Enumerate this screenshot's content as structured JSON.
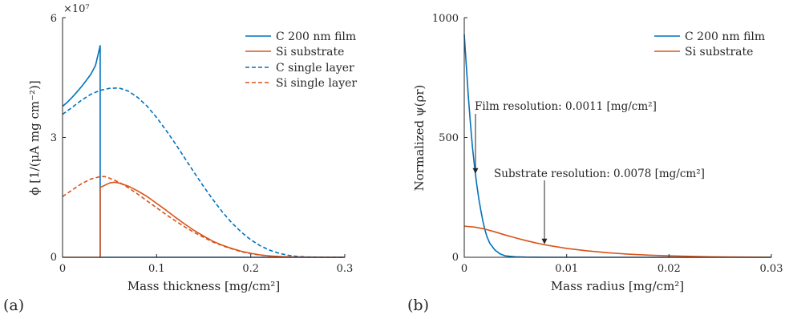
{
  "panels": [
    {
      "label": "(a)",
      "xlabel": "Mass thickness [mg/cm²]",
      "ylabel": "ϕ [1/(μA mg cm⁻²)]",
      "y_multiplier": "×10⁷"
    },
    {
      "label": "(b)",
      "xlabel": "Mass radius [mg/cm²]",
      "ylabel": "Normalized ψ(ρr)"
    }
  ],
  "colors": {
    "blue": "#0072BD",
    "orange": "#D95319",
    "axis": "#262626"
  },
  "chart_data": [
    {
      "type": "line",
      "xlim": [
        0,
        0.3
      ],
      "ylim": [
        0,
        6
      ],
      "y_scale_exponent": 7,
      "x_ticks": [
        "0",
        "0.1",
        "0.2",
        "0.3"
      ],
      "x_tick_values": [
        0,
        0.1,
        0.2,
        0.3
      ],
      "y_ticks": [
        "0",
        "3",
        "6"
      ],
      "y_tick_values": [
        0,
        3,
        6
      ],
      "grid": false,
      "legend_position": "top-right",
      "series": [
        {
          "name": "C 200 nm film",
          "color": "blue",
          "dash": "solid",
          "points": [
            [
              0,
              3.78
            ],
            [
              0.005,
              3.88
            ],
            [
              0.01,
              4.0
            ],
            [
              0.015,
              4.13
            ],
            [
              0.02,
              4.27
            ],
            [
              0.025,
              4.42
            ],
            [
              0.03,
              4.58
            ],
            [
              0.035,
              4.8
            ],
            [
              0.04,
              5.3
            ],
            [
              0.04,
              0.0
            ],
            [
              0.3,
              0.0
            ]
          ]
        },
        {
          "name": "Si substrate",
          "color": "orange",
          "dash": "solid",
          "points": [
            [
              0,
              0.0
            ],
            [
              0.04,
              0.0
            ],
            [
              0.04,
              1.75
            ],
            [
              0.05,
              1.86
            ],
            [
              0.055,
              1.88
            ],
            [
              0.06,
              1.86
            ],
            [
              0.07,
              1.78
            ],
            [
              0.08,
              1.66
            ],
            [
              0.09,
              1.52
            ],
            [
              0.1,
              1.35
            ],
            [
              0.11,
              1.18
            ],
            [
              0.12,
              1.0
            ],
            [
              0.13,
              0.83
            ],
            [
              0.14,
              0.67
            ],
            [
              0.15,
              0.53
            ],
            [
              0.16,
              0.4
            ],
            [
              0.17,
              0.3
            ],
            [
              0.18,
              0.22
            ],
            [
              0.19,
              0.15
            ],
            [
              0.2,
              0.1
            ],
            [
              0.21,
              0.06
            ],
            [
              0.22,
              0.035
            ],
            [
              0.23,
              0.02
            ],
            [
              0.24,
              0.01
            ],
            [
              0.26,
              0.003
            ],
            [
              0.28,
              0.0
            ],
            [
              0.3,
              0.0
            ]
          ]
        },
        {
          "name": "C single layer",
          "color": "blue",
          "dash": "dashed",
          "points": [
            [
              0,
              3.58
            ],
            [
              0.01,
              3.75
            ],
            [
              0.02,
              3.93
            ],
            [
              0.03,
              4.08
            ],
            [
              0.04,
              4.18
            ],
            [
              0.05,
              4.23
            ],
            [
              0.06,
              4.24
            ],
            [
              0.07,
              4.16
            ],
            [
              0.08,
              4.0
            ],
            [
              0.09,
              3.78
            ],
            [
              0.1,
              3.5
            ],
            [
              0.11,
              3.18
            ],
            [
              0.12,
              2.84
            ],
            [
              0.13,
              2.48
            ],
            [
              0.14,
              2.12
            ],
            [
              0.15,
              1.77
            ],
            [
              0.16,
              1.44
            ],
            [
              0.17,
              1.13
            ],
            [
              0.18,
              0.86
            ],
            [
              0.19,
              0.63
            ],
            [
              0.2,
              0.44
            ],
            [
              0.21,
              0.29
            ],
            [
              0.22,
              0.18
            ],
            [
              0.23,
              0.1
            ],
            [
              0.24,
              0.05
            ],
            [
              0.25,
              0.02
            ],
            [
              0.26,
              0.008
            ],
            [
              0.28,
              0.0
            ],
            [
              0.3,
              0.0
            ]
          ]
        },
        {
          "name": "Si single layer",
          "color": "orange",
          "dash": "dashed",
          "points": [
            [
              0,
              1.52
            ],
            [
              0.01,
              1.68
            ],
            [
              0.02,
              1.84
            ],
            [
              0.03,
              1.96
            ],
            [
              0.04,
              2.02
            ],
            [
              0.045,
              2.02
            ],
            [
              0.05,
              1.98
            ],
            [
              0.06,
              1.88
            ],
            [
              0.07,
              1.74
            ],
            [
              0.08,
              1.58
            ],
            [
              0.09,
              1.41
            ],
            [
              0.1,
              1.24
            ],
            [
              0.11,
              1.07
            ],
            [
              0.12,
              0.91
            ],
            [
              0.13,
              0.76
            ],
            [
              0.14,
              0.62
            ],
            [
              0.15,
              0.5
            ],
            [
              0.16,
              0.38
            ],
            [
              0.17,
              0.29
            ],
            [
              0.18,
              0.21
            ],
            [
              0.19,
              0.14
            ],
            [
              0.2,
              0.09
            ],
            [
              0.21,
              0.055
            ],
            [
              0.22,
              0.03
            ],
            [
              0.23,
              0.015
            ],
            [
              0.24,
              0.007
            ],
            [
              0.26,
              0.0
            ],
            [
              0.3,
              0.0
            ]
          ]
        }
      ]
    },
    {
      "type": "line",
      "xlim": [
        0,
        0.03
      ],
      "ylim": [
        0,
        1000
      ],
      "x_ticks": [
        "0",
        "0.01",
        "0.02",
        "0.03"
      ],
      "x_tick_values": [
        0,
        0.01,
        0.02,
        0.03
      ],
      "y_ticks": [
        "0",
        "500",
        "1000"
      ],
      "y_tick_values": [
        0,
        500,
        1000
      ],
      "grid": false,
      "legend_position": "top-right",
      "series": [
        {
          "name": "C 200 nm film",
          "color": "blue",
          "dash": "solid",
          "points": [
            [
              0,
              930
            ],
            [
              0.0002,
              800
            ],
            [
              0.0004,
              670
            ],
            [
              0.0006,
              560
            ],
            [
              0.0008,
              460
            ],
            [
              0.001,
              380
            ],
            [
              0.0012,
              310
            ],
            [
              0.0014,
              250
            ],
            [
              0.0016,
              200
            ],
            [
              0.0018,
              155
            ],
            [
              0.002,
              118
            ],
            [
              0.0022,
              88
            ],
            [
              0.0025,
              58
            ],
            [
              0.003,
              30
            ],
            [
              0.0035,
              14
            ],
            [
              0.004,
              6
            ],
            [
              0.005,
              2
            ],
            [
              0.006,
              0.5
            ],
            [
              0.008,
              0
            ],
            [
              0.03,
              0
            ]
          ]
        },
        {
          "name": "Si substrate",
          "color": "orange",
          "dash": "solid",
          "points": [
            [
              0,
              130
            ],
            [
              0.001,
              126
            ],
            [
              0.002,
              118
            ],
            [
              0.003,
              106
            ],
            [
              0.004,
              93
            ],
            [
              0.005,
              81
            ],
            [
              0.006,
              70
            ],
            [
              0.007,
              60
            ],
            [
              0.008,
              51
            ],
            [
              0.009,
              44
            ],
            [
              0.01,
              37
            ],
            [
              0.012,
              27
            ],
            [
              0.014,
              19
            ],
            [
              0.016,
              13
            ],
            [
              0.018,
              9
            ],
            [
              0.02,
              6
            ],
            [
              0.022,
              4
            ],
            [
              0.024,
              2
            ],
            [
              0.026,
              1
            ],
            [
              0.028,
              0.5
            ],
            [
              0.03,
              0
            ]
          ]
        }
      ],
      "annotations": [
        {
          "text": "Film resolution: 0.0011 [mg/cm²]",
          "x": 0.0011,
          "y": 350
        },
        {
          "text": "Substrate resolution: 0.0078 [mg/cm²]",
          "x": 0.0078,
          "y": 58
        }
      ]
    }
  ]
}
